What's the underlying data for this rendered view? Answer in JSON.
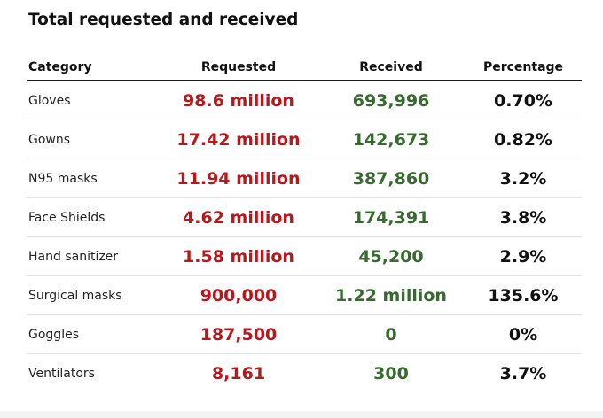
{
  "title": "Total requested and received",
  "columns": {
    "category": "Category",
    "requested": "Requested",
    "received": "Received",
    "percentage": "Percentage"
  },
  "colors": {
    "requested": "#b8171b",
    "received": "#376a2e",
    "percentage": "#111111"
  },
  "rows": [
    {
      "category": "Gloves",
      "requested": "98.6 million",
      "received": "693,996",
      "percentage": "0.70%"
    },
    {
      "category": "Gowns",
      "requested": "17.42 million",
      "received": "142,673",
      "percentage": "0.82%"
    },
    {
      "category": "N95 masks",
      "requested": "11.94 million",
      "received": "387,860",
      "percentage": "3.2%"
    },
    {
      "category": "Face Shields",
      "requested": "4.62 million",
      "received": "174,391",
      "percentage": "3.8%"
    },
    {
      "category": "Hand sanitizer",
      "requested": "1.58 million",
      "received": "45,200",
      "percentage": "2.9%"
    },
    {
      "category": "Surgical masks",
      "requested": "900,000",
      "received": "1.22 million",
      "percentage": "135.6%"
    },
    {
      "category": "Goggles",
      "requested": "187,500",
      "received": "0",
      "percentage": "0%"
    },
    {
      "category": "Ventilators",
      "requested": "8,161",
      "received": "300",
      "percentage": "3.7%"
    }
  ]
}
